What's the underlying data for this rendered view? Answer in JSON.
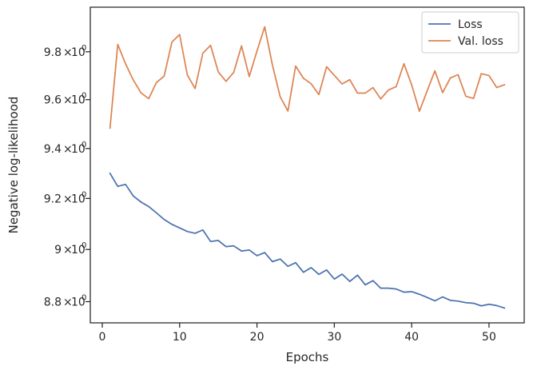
{
  "chart_data": {
    "type": "line",
    "xlabel": "Epochs",
    "ylabel": "Negative log-likelihood",
    "yscale": "log",
    "xlim": [
      -1.55,
      54.55
    ],
    "ylim": [
      8.72,
      9.99
    ],
    "x_ticks": [
      {
        "value": 0,
        "label": "0"
      },
      {
        "value": 10,
        "label": "10"
      },
      {
        "value": 20,
        "label": "20"
      },
      {
        "value": 30,
        "label": "30"
      },
      {
        "value": 40,
        "label": "40"
      },
      {
        "value": 50,
        "label": "50"
      }
    ],
    "y_ticks": [
      {
        "value": 8.8,
        "mant": "8.8",
        "exp": "0"
      },
      {
        "value": 9.0,
        "mant": "9",
        "exp": "0"
      },
      {
        "value": 9.2,
        "mant": "9.2",
        "exp": "0"
      },
      {
        "value": 9.4,
        "mant": "9.4",
        "exp": "0"
      },
      {
        "value": 9.6,
        "mant": "9.6",
        "exp": "0"
      },
      {
        "value": 9.8,
        "mant": "9.8",
        "exp": "0"
      }
    ],
    "legend_position": "top-right",
    "grid": false,
    "x": [
      1,
      2,
      3,
      4,
      5,
      6,
      7,
      8,
      9,
      10,
      11,
      12,
      13,
      14,
      15,
      16,
      17,
      18,
      19,
      20,
      21,
      22,
      23,
      24,
      25,
      26,
      27,
      28,
      29,
      30,
      31,
      32,
      33,
      34,
      35,
      36,
      37,
      38,
      39,
      40,
      41,
      42,
      43,
      44,
      45,
      46,
      47,
      48,
      49,
      50,
      51,
      52
    ],
    "series": [
      {
        "name": "Loss",
        "color": "#4c72b0",
        "values": [
          9.3,
          9.248,
          9.256,
          9.21,
          9.186,
          9.168,
          9.143,
          9.117,
          9.098,
          9.084,
          9.07,
          9.063,
          9.076,
          9.031,
          9.035,
          9.011,
          9.014,
          8.994,
          8.998,
          8.976,
          8.988,
          8.953,
          8.963,
          8.935,
          8.949,
          8.912,
          8.93,
          8.904,
          8.921,
          8.886,
          8.905,
          8.877,
          8.901,
          8.864,
          8.88,
          8.851,
          8.851,
          8.848,
          8.836,
          8.838,
          8.828,
          8.816,
          8.803,
          8.818,
          8.805,
          8.802,
          8.796,
          8.794,
          8.784,
          8.79,
          8.785,
          8.776
        ]
      },
      {
        "name": "Val. loss",
        "color": "#dd8452",
        "values": [
          9.483,
          9.831,
          9.75,
          9.682,
          9.628,
          9.604,
          9.671,
          9.698,
          9.841,
          9.873,
          9.702,
          9.646,
          9.794,
          9.827,
          9.715,
          9.676,
          9.714,
          9.825,
          9.696,
          9.803,
          9.906,
          9.744,
          9.612,
          9.553,
          9.74,
          9.689,
          9.666,
          9.621,
          9.737,
          9.701,
          9.665,
          9.683,
          9.627,
          9.627,
          9.65,
          9.603,
          9.64,
          9.654,
          9.75,
          9.661,
          9.552,
          9.636,
          9.72,
          9.629,
          9.69,
          9.704,
          9.614,
          9.605,
          9.708,
          9.7,
          9.65,
          9.662
        ]
      }
    ]
  }
}
